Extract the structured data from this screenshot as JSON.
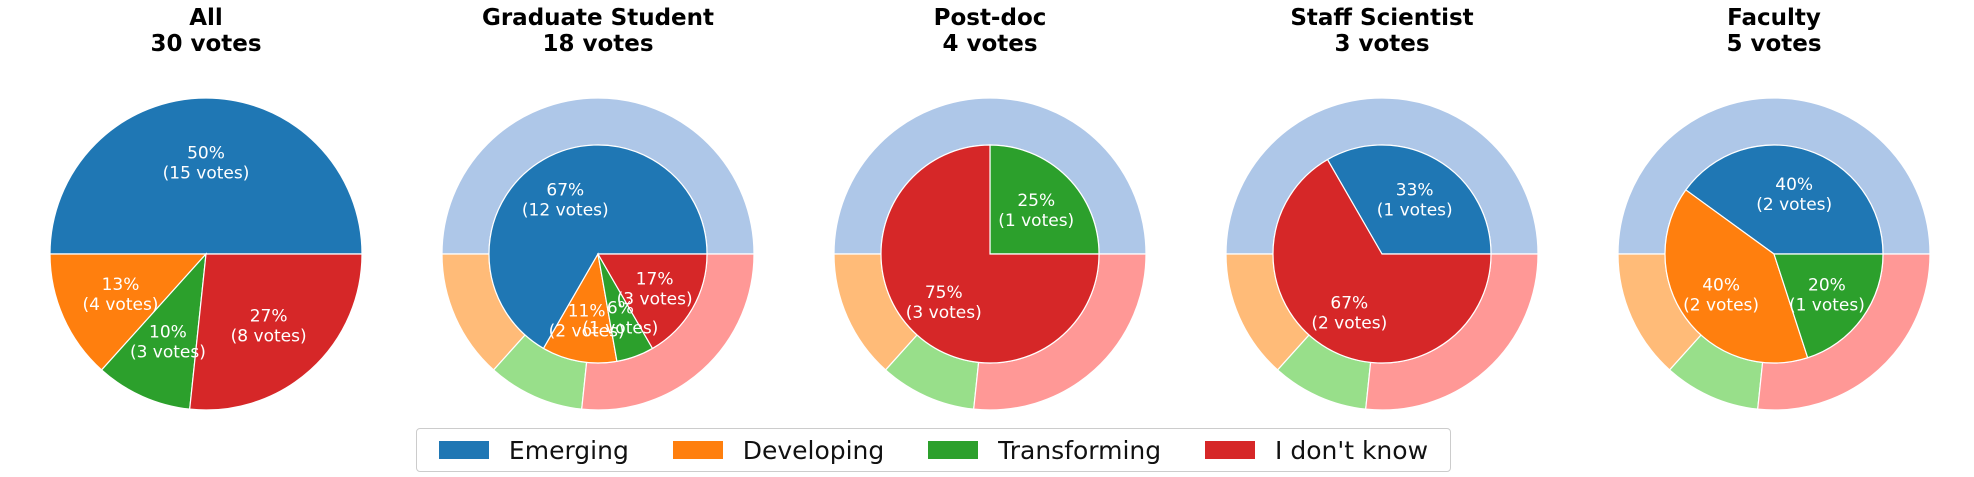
{
  "colors": {
    "Emerging": "#1f77b4",
    "Developing": "#ff7f0e",
    "Transforming": "#2ca02c",
    "I don't know": "#d62728",
    "outer_Emerging": "#aec7e8",
    "outer_Developing": "#ffbb78",
    "outer_Transforming": "#98df8a",
    "outer_I don't know": "#ff9896"
  },
  "legend": [
    {
      "label": "Emerging",
      "color": "#1f77b4"
    },
    {
      "label": "Developing",
      "color": "#ff7f0e"
    },
    {
      "label": "Transforming",
      "color": "#2ca02c"
    },
    {
      "label": "I don't know",
      "color": "#d62728"
    }
  ],
  "chart_data": [
    {
      "type": "pie",
      "title": "All",
      "subtitle": "30 votes",
      "categories": [
        "Emerging",
        "Developing",
        "Transforming",
        "I don't know"
      ],
      "values": [
        15,
        4,
        3,
        8
      ],
      "labels": [
        "50%\n(15 votes)",
        "13%\n(4 votes)",
        "10%\n(3 votes)",
        "27%\n(8 votes)"
      ],
      "outer_ring_values": null
    },
    {
      "type": "pie",
      "title": "Graduate Student",
      "subtitle": "18 votes",
      "categories": [
        "Emerging",
        "Developing",
        "Transforming",
        "I don't know"
      ],
      "values": [
        12,
        2,
        1,
        3
      ],
      "labels": [
        "67%\n(12 votes)",
        "11%\n(2 votes)",
        "6%\n(1 votes)",
        "17%\n(3 votes)"
      ],
      "outer_ring_values": [
        15,
        4,
        3,
        8
      ]
    },
    {
      "type": "pie",
      "title": "Post-doc",
      "subtitle": "4 votes",
      "categories": [
        "Emerging",
        "Developing",
        "Transforming",
        "I don't know"
      ],
      "values": [
        0,
        0,
        1,
        3
      ],
      "labels": [
        "",
        "",
        "25%\n(1 votes)",
        "75%\n(3 votes)"
      ],
      "outer_ring_values": [
        15,
        4,
        3,
        8
      ]
    },
    {
      "type": "pie",
      "title": "Staff Scientist",
      "subtitle": "3 votes",
      "categories": [
        "Emerging",
        "Developing",
        "Transforming",
        "I don't know"
      ],
      "values": [
        1,
        0,
        0,
        2
      ],
      "labels": [
        "33%\n(1 votes)",
        "",
        "",
        "67%\n(2 votes)"
      ],
      "outer_ring_values": [
        15,
        4,
        3,
        8
      ]
    },
    {
      "type": "pie",
      "title": "Faculty",
      "subtitle": "5 votes",
      "categories": [
        "Emerging",
        "Developing",
        "Transforming",
        "I don't know"
      ],
      "values": [
        2,
        2,
        1,
        0
      ],
      "labels": [
        "40%\n(2 votes)",
        "40%\n(2 votes)",
        "20%\n(1 votes)",
        ""
      ],
      "outer_ring_values": [
        15,
        4,
        3,
        8
      ]
    }
  ]
}
